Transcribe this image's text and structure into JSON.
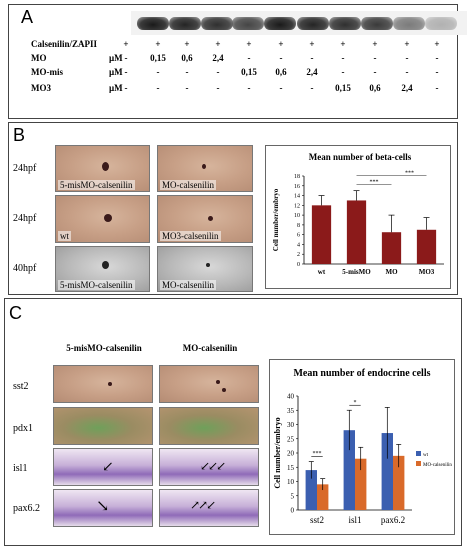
{
  "panel_a": {
    "label": "A",
    "rows": [
      {
        "name": "Calsenilin/ZAPII",
        "unit": "",
        "values": [
          "+",
          "+",
          "+",
          "+",
          "+",
          "+",
          "+",
          "+",
          "+",
          "+",
          "+"
        ]
      },
      {
        "name": "MO",
        "unit": "µM",
        "values": [
          "-",
          "0,15",
          "0,6",
          "2,4",
          "-",
          "-",
          "-",
          "-",
          "-",
          "-",
          "-"
        ]
      },
      {
        "name": "MO-mis",
        "unit": "µM",
        "values": [
          "-",
          "-",
          "-",
          "-",
          "0,15",
          "0,6",
          "2,4",
          "-",
          "-",
          "-",
          "-"
        ]
      },
      {
        "name": "MO3",
        "unit": "µM",
        "values": [
          "-",
          "-",
          "-",
          "-",
          "-",
          "-",
          "-",
          "0,15",
          "0,6",
          "2,4",
          "-"
        ]
      }
    ]
  },
  "panel_b": {
    "label": "B",
    "rows": [
      {
        "stage": "24hpf",
        "left": "5-misMO-calsenilin",
        "right": "MO-calsenilin"
      },
      {
        "stage": "24hpf",
        "left": "wt",
        "right": "MO3-calsenilin"
      },
      {
        "stage": "40hpf",
        "left": "5-misMO-calsenilin",
        "right": "MO-calsenilin"
      }
    ]
  },
  "panel_c": {
    "label": "C",
    "col_headers": [
      "5-misMO-calsenilin",
      "MO-calsenilin"
    ],
    "rows": [
      "sst2",
      "pdx1",
      "isl1",
      "pax6.2"
    ]
  },
  "chart_data": [
    {
      "type": "bar",
      "title": "Mean number of beta-cells",
      "ylabel": "Cell number/embryo",
      "xlabel": "",
      "categories": [
        "wt",
        "5-misMO",
        "MO",
        "MO3"
      ],
      "values": [
        12,
        13,
        6.5,
        7
      ],
      "errors": [
        2,
        2,
        3.5,
        2.5
      ],
      "ylim": [
        0,
        18
      ],
      "yticks": [
        0,
        2,
        4,
        6,
        8,
        10,
        12,
        14,
        16,
        18
      ],
      "significance": [
        "***",
        "***"
      ],
      "grid": false,
      "bar_color": "#8b1a1a"
    },
    {
      "type": "bar",
      "title": "Mean number of endocrine cells",
      "ylabel": "Cell number/embryo",
      "xlabel": "",
      "categories": [
        "sst2",
        "isl1",
        "pax6.2"
      ],
      "series": [
        {
          "name": "wt",
          "values": [
            14,
            28,
            27
          ],
          "errors": [
            3,
            7,
            9
          ],
          "color": "#3b5fb0"
        },
        {
          "name": "MO-calsenilin",
          "values": [
            9,
            18,
            19
          ],
          "errors": [
            2,
            4,
            4
          ],
          "color": "#d96a2a"
        }
      ],
      "ylim": [
        0,
        40
      ],
      "yticks": [
        0,
        5,
        10,
        15,
        20,
        25,
        30,
        35,
        40
      ],
      "significance": [
        "***",
        "*"
      ],
      "legend_position": "right",
      "grid": false
    }
  ]
}
